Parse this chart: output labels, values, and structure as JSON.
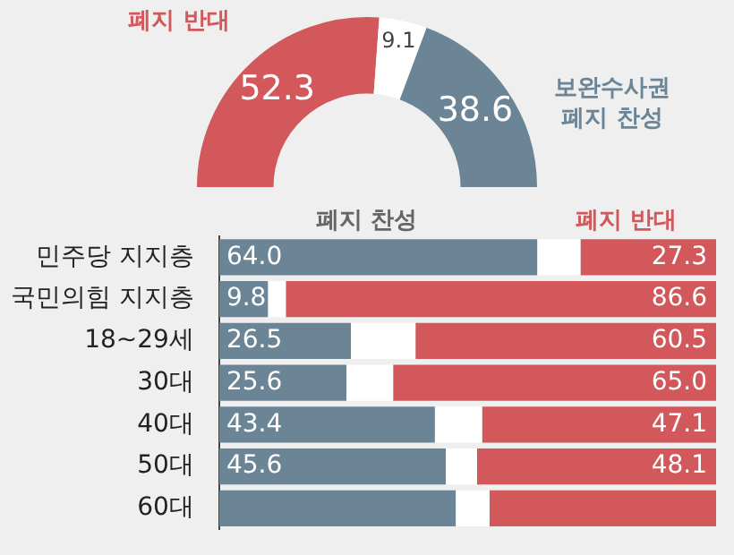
{
  "chart_data": [
    {
      "type": "donut",
      "categories": [
        "폐지 반대",
        null,
        "보완수사권 폐지 찬성"
      ],
      "values": [
        52.3,
        9.1,
        38.6
      ],
      "colors": [
        "#d2585b",
        "#ffffff",
        "#6c8596"
      ],
      "data_labels": true
    },
    {
      "type": "bar",
      "orientation": "horizontal",
      "stacked": true,
      "legend": "top",
      "xlim": [
        0,
        100
      ],
      "categories": [
        "민주당 지지층",
        "국민의힘 지지층",
        "18~29세",
        "30대",
        "40대",
        "50대",
        "60대"
      ],
      "series": [
        {
          "name": "폐지 찬성",
          "color": "#6c8596",
          "values": [
            64.0,
            9.8,
            26.5,
            25.6,
            43.4,
            45.6,
            47.6
          ],
          "value_labels": [
            "64.0",
            "9.8",
            "26.5",
            "25.6",
            "43.4",
            "45.6",
            null
          ]
        },
        {
          "color": "#ffffff",
          "values": [
            8.7,
            3.6,
            13.0,
            9.4,
            9.5,
            6.3,
            6.8
          ]
        },
        {
          "name": "폐지 반대",
          "color": "#d2585b",
          "values": [
            27.3,
            86.6,
            60.5,
            65.0,
            47.1,
            48.1,
            45.6
          ],
          "value_labels": [
            "27.3",
            "86.6",
            "60.5",
            "65.0",
            "47.1",
            "48.1",
            null
          ]
        }
      ]
    }
  ]
}
